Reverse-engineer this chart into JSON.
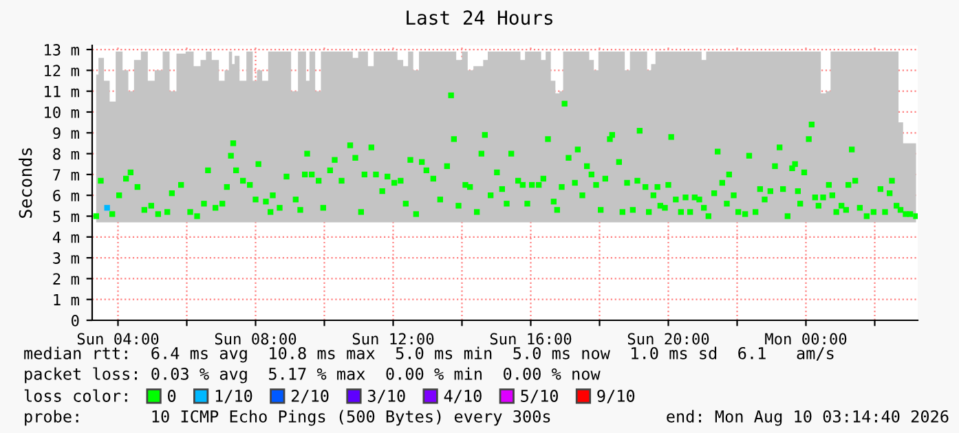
{
  "chart_data": {
    "type": "scatter",
    "title": "Last 24 Hours",
    "ylabel": "Seconds",
    "x": [
      "2026-08-09T03:22",
      "2026-08-09T03:30",
      "2026-08-09T03:41",
      "2026-08-09T03:50",
      "2026-08-09T04:02",
      "2026-08-09T04:14",
      "2026-08-09T04:22",
      "2026-08-09T04:34",
      "2026-08-09T04:46",
      "2026-08-09T04:58",
      "2026-08-09T05:10",
      "2026-08-09T05:26",
      "2026-08-09T05:34",
      "2026-08-09T05:50",
      "2026-08-09T06:06",
      "2026-08-09T06:18",
      "2026-08-09T06:30",
      "2026-08-09T06:37",
      "2026-08-09T06:50",
      "2026-08-09T07:02",
      "2026-08-09T07:10",
      "2026-08-09T07:17",
      "2026-08-09T07:21",
      "2026-08-09T07:26",
      "2026-08-09T07:38",
      "2026-08-09T07:50",
      "2026-08-09T08:00",
      "2026-08-09T08:05",
      "2026-08-09T08:18",
      "2026-08-09T08:26",
      "2026-08-09T08:30",
      "2026-08-09T08:42",
      "2026-08-09T08:54",
      "2026-08-09T09:10",
      "2026-08-09T09:18",
      "2026-08-09T09:26",
      "2026-08-09T09:30",
      "2026-08-09T09:38",
      "2026-08-09T09:50",
      "2026-08-09T09:58",
      "2026-08-09T10:10",
      "2026-08-09T10:18",
      "2026-08-09T10:30",
      "2026-08-09T10:45",
      "2026-08-09T10:54",
      "2026-08-09T11:04",
      "2026-08-09T11:10",
      "2026-08-09T11:22",
      "2026-08-09T11:30",
      "2026-08-09T11:41",
      "2026-08-09T11:50",
      "2026-08-09T12:02",
      "2026-08-09T12:13",
      "2026-08-09T12:22",
      "2026-08-09T12:30",
      "2026-08-09T12:40",
      "2026-08-09T12:50",
      "2026-08-09T12:58",
      "2026-08-09T13:10",
      "2026-08-09T13:22",
      "2026-08-09T13:34",
      "2026-08-09T13:41",
      "2026-08-09T13:46",
      "2026-08-09T13:54",
      "2026-08-09T14:06",
      "2026-08-09T14:14",
      "2026-08-09T14:26",
      "2026-08-09T14:34",
      "2026-08-09T14:40",
      "2026-08-09T14:50",
      "2026-08-09T15:01",
      "2026-08-09T15:10",
      "2026-08-09T15:18",
      "2026-08-09T15:26",
      "2026-08-09T15:38",
      "2026-08-09T15:46",
      "2026-08-09T15:54",
      "2026-08-09T16:02",
      "2026-08-09T16:14",
      "2026-08-09T16:22",
      "2026-08-09T16:30",
      "2026-08-09T16:40",
      "2026-08-09T16:46",
      "2026-08-09T16:54",
      "2026-08-09T16:59",
      "2026-08-09T17:06",
      "2026-08-09T17:17",
      "2026-08-09T17:22",
      "2026-08-09T17:30",
      "2026-08-09T17:38",
      "2026-08-09T17:46",
      "2026-08-09T17:54",
      "2026-08-09T18:02",
      "2026-08-09T18:10",
      "2026-08-09T18:18",
      "2026-08-09T18:22",
      "2026-08-09T18:34",
      "2026-08-09T18:40",
      "2026-08-09T18:48",
      "2026-08-09T18:58",
      "2026-08-09T19:06",
      "2026-08-09T19:10",
      "2026-08-09T19:20",
      "2026-08-09T19:26",
      "2026-08-09T19:34",
      "2026-08-09T19:41",
      "2026-08-09T19:46",
      "2026-08-09T19:54",
      "2026-08-09T20:00",
      "2026-08-09T20:05",
      "2026-08-09T20:13",
      "2026-08-09T20:22",
      "2026-08-09T20:30",
      "2026-08-09T20:38",
      "2026-08-09T20:46",
      "2026-08-09T20:54",
      "2026-08-09T21:02",
      "2026-08-09T21:10",
      "2026-08-09T21:20",
      "2026-08-09T21:26",
      "2026-08-09T21:34",
      "2026-08-09T21:42",
      "2026-08-09T21:46",
      "2026-08-09T21:54",
      "2026-08-09T22:02",
      "2026-08-09T22:14",
      "2026-08-09T22:21",
      "2026-08-09T22:32",
      "2026-08-09T22:40",
      "2026-08-09T22:48",
      "2026-08-09T22:58",
      "2026-08-09T23:06",
      "2026-08-09T23:14",
      "2026-08-09T23:20",
      "2026-08-09T23:28",
      "2026-08-09T23:36",
      "2026-08-09T23:41",
      "2026-08-09T23:46",
      "2026-08-09T23:50",
      "2026-08-09T23:57",
      "2026-08-10T00:05",
      "2026-08-10T00:10",
      "2026-08-10T00:16",
      "2026-08-10T00:22",
      "2026-08-10T00:30",
      "2026-08-10T00:40",
      "2026-08-10T00:46",
      "2026-08-10T00:53",
      "2026-08-10T01:02",
      "2026-08-10T01:10",
      "2026-08-10T01:14",
      "2026-08-10T01:20",
      "2026-08-10T01:26",
      "2026-08-10T01:34",
      "2026-08-10T01:46",
      "2026-08-10T01:58",
      "2026-08-10T02:10",
      "2026-08-10T02:18",
      "2026-08-10T02:26",
      "2026-08-10T02:30",
      "2026-08-10T02:38",
      "2026-08-10T02:45",
      "2026-08-10T02:54",
      "2026-08-10T03:02",
      "2026-08-10T03:12"
    ],
    "series": [
      {
        "name": "0",
        "color": "#00ff00",
        "values": [
          5.0,
          6.7,
          null,
          5.1,
          6.0,
          6.8,
          7.1,
          6.4,
          5.3,
          5.5,
          5.1,
          5.2,
          6.1,
          6.5,
          5.2,
          5.0,
          5.6,
          7.2,
          5.4,
          5.6,
          6.4,
          7.9,
          8.5,
          7.2,
          6.7,
          6.5,
          5.8,
          7.5,
          5.7,
          5.2,
          6.0,
          5.4,
          6.9,
          5.8,
          5.3,
          7.0,
          8.0,
          7.0,
          6.7,
          5.4,
          7.2,
          7.7,
          6.7,
          8.4,
          7.8,
          5.2,
          7.0,
          8.3,
          7.0,
          6.2,
          6.9,
          6.6,
          6.7,
          5.6,
          7.7,
          5.1,
          7.6,
          7.2,
          6.8,
          5.8,
          7.4,
          10.8,
          8.7,
          5.5,
          6.5,
          6.4,
          5.2,
          8.0,
          8.9,
          6.0,
          7.1,
          6.3,
          5.6,
          8.0,
          6.7,
          6.5,
          5.6,
          6.5,
          6.5,
          6.8,
          8.7,
          5.7,
          5.3,
          6.4,
          10.4,
          7.8,
          6.6,
          8.2,
          6.0,
          7.4,
          7.0,
          6.5,
          5.3,
          6.8,
          8.7,
          8.9,
          7.6,
          5.2,
          6.6,
          5.3,
          6.7,
          9.1,
          6.4,
          5.2,
          6.0,
          6.4,
          5.5,
          5.4,
          6.5,
          8.8,
          5.8,
          5.2,
          5.9,
          5.2,
          5.9,
          5.8,
          5.4,
          5.0,
          6.1,
          8.1,
          6.6,
          5.6,
          7.0,
          6.0,
          5.2,
          5.1,
          7.9,
          5.2,
          6.3,
          5.8,
          6.2,
          7.4,
          8.3,
          6.3,
          5.0,
          7.3,
          7.5,
          6.2,
          5.6,
          7.1,
          8.7,
          9.4,
          5.9,
          5.5,
          5.9,
          6.5,
          6.0,
          5.2,
          5.5,
          5.3,
          6.5,
          8.2,
          6.7,
          5.4,
          5.0,
          5.2,
          6.3,
          5.2,
          6.1,
          6.7,
          5.5,
          5.3,
          5.1,
          5.1,
          5.0
        ],
        "lower": [
          4.7,
          4.7,
          4.7,
          4.7,
          4.7,
          4.7,
          4.7,
          4.7,
          4.7,
          4.7,
          4.7,
          4.7,
          4.7,
          4.7,
          4.7,
          4.7,
          4.7,
          4.7,
          4.7,
          4.7,
          4.7,
          4.7,
          4.7,
          4.7,
          4.7,
          4.7,
          4.7,
          4.7,
          4.7,
          4.7,
          4.7,
          4.7,
          4.7,
          4.7,
          4.7,
          4.7,
          4.7,
          4.7,
          4.7,
          4.7,
          4.7,
          4.7,
          4.7,
          4.7,
          4.7,
          4.7,
          4.7,
          4.7,
          4.7,
          4.7,
          4.7,
          4.7,
          4.7,
          4.7,
          4.7,
          4.7,
          4.7,
          4.7,
          4.7,
          4.7,
          4.7,
          4.7,
          4.7,
          4.7,
          4.7,
          4.7,
          4.7,
          4.7,
          4.7,
          4.7,
          4.7,
          4.7,
          4.7,
          4.7,
          4.7,
          4.7,
          4.7,
          4.7,
          4.7,
          4.7,
          4.7,
          4.7,
          4.7,
          4.7,
          4.7,
          4.7,
          4.7,
          4.7,
          4.7,
          4.7,
          4.7,
          4.7,
          4.7,
          4.7,
          4.7,
          4.7,
          4.7,
          4.7,
          4.7,
          4.7,
          4.7,
          4.7,
          4.7,
          4.7,
          4.7,
          4.7,
          4.7,
          4.7,
          4.7,
          4.7,
          4.7,
          4.7,
          4.7,
          4.7,
          4.7,
          4.7,
          4.7,
          4.7,
          4.7,
          4.7,
          4.7,
          4.7,
          4.7,
          4.7,
          4.7,
          4.7,
          4.7,
          4.7,
          4.7,
          4.7,
          4.7,
          4.7,
          4.7,
          4.7,
          4.7,
          4.7,
          4.7,
          4.7,
          4.7,
          4.7,
          4.7,
          4.7,
          4.7,
          4.7,
          4.7,
          4.7,
          4.7,
          4.7,
          4.7,
          4.7,
          4.7,
          4.7,
          4.7,
          4.7,
          4.7,
          4.7,
          4.7,
          4.7,
          4.7,
          4.7,
          4.7,
          4.7,
          4.7,
          4.7,
          4.7
        ],
        "upper": [
          11.8,
          12.6,
          11.5,
          10.5,
          12.9,
          12.0,
          11.0,
          12.5,
          12.9,
          11.5,
          12.0,
          12.9,
          11.0,
          12.8,
          12.9,
          12.2,
          12.5,
          12.9,
          12.5,
          11.5,
          12.0,
          12.9,
          12.3,
          12.7,
          11.5,
          12.9,
          11.5,
          12.0,
          11.5,
          12.9,
          12.9,
          12.9,
          12.9,
          11.0,
          12.9,
          12.9,
          11.5,
          12.9,
          11.0,
          12.9,
          12.9,
          12.9,
          12.9,
          12.9,
          12.6,
          12.9,
          12.9,
          12.2,
          12.9,
          12.9,
          12.9,
          12.9,
          12.5,
          12.2,
          12.9,
          12.0,
          12.9,
          12.9,
          12.9,
          12.9,
          12.9,
          12.9,
          12.9,
          12.5,
          12.9,
          12.0,
          12.2,
          12.2,
          12.5,
          12.9,
          12.9,
          12.9,
          12.9,
          12.9,
          12.9,
          12.5,
          12.9,
          12.9,
          12.9,
          12.5,
          12.9,
          11.5,
          10.9,
          11.0,
          12.9,
          12.9,
          12.9,
          12.9,
          12.9,
          12.9,
          12.5,
          12.0,
          12.9,
          12.9,
          12.9,
          12.9,
          12.9,
          12.9,
          12.0,
          12.9,
          12.9,
          12.9,
          12.9,
          12.0,
          12.3,
          12.9,
          12.9,
          12.9,
          12.9,
          12.9,
          12.9,
          12.9,
          12.9,
          12.9,
          12.9,
          12.9,
          12.5,
          12.9,
          12.9,
          12.9,
          12.9,
          12.9,
          12.9,
          12.9,
          12.9,
          12.9,
          12.9,
          12.9,
          12.9,
          12.9,
          12.9,
          12.9,
          12.9,
          12.9,
          12.9,
          12.9,
          12.9,
          12.9,
          12.9,
          12.9,
          12.9,
          12.9,
          12.9,
          12.9,
          10.9,
          11.0,
          12.9,
          12.9,
          12.9,
          12.9,
          12.9,
          12.9,
          12.9,
          12.9,
          12.9,
          12.9,
          12.9,
          12.9,
          12.9,
          12.9,
          12.9,
          9.5,
          8.5,
          8.5,
          8.5
        ]
      },
      {
        "name": "1/10",
        "color": "#00b8ff",
        "x": [
          "2026-08-09T03:41"
        ],
        "values": [
          5.4
        ]
      },
      {
        "name": "2/10",
        "color": "#0059ff",
        "values": [
          null,
          null,
          null,
          null,
          null,
          null,
          null,
          null,
          null,
          null,
          null,
          null,
          null,
          null,
          null,
          null,
          null,
          null,
          null,
          null,
          null,
          null,
          null,
          null,
          null,
          null,
          null,
          null,
          null,
          null,
          null,
          null,
          null,
          null,
          null,
          null,
          null,
          null,
          null,
          null,
          null,
          null,
          null,
          null,
          null,
          null,
          null,
          null,
          null,
          null,
          null,
          null,
          null,
          null,
          null,
          null,
          null,
          null,
          null,
          null,
          null,
          null,
          null,
          null,
          null,
          null,
          null,
          null,
          null,
          null,
          null,
          null,
          null,
          null,
          null,
          null,
          null,
          null,
          null,
          null,
          null,
          null,
          null,
          null,
          null,
          null,
          null,
          null,
          null,
          null,
          null,
          null,
          null,
          null,
          null,
          null,
          null,
          null,
          null,
          null,
          null,
          null,
          null,
          null,
          null,
          null,
          null,
          null,
          null,
          null,
          null,
          null,
          null,
          null,
          null,
          null,
          null,
          null,
          null,
          null,
          null,
          null,
          null,
          null,
          null,
          null,
          null,
          null,
          null,
          null,
          null,
          null,
          null,
          null,
          null,
          null,
          null,
          null,
          null,
          null,
          null,
          null,
          null,
          null,
          null,
          null,
          null,
          null,
          null,
          null,
          null,
          null,
          null,
          null,
          null,
          null,
          null,
          null,
          null,
          null,
          null,
          null,
          null,
          null,
          null
        ]
      },
      {
        "name": "3/10",
        "color": "#5e00ff",
        "values": [
          null,
          null,
          null,
          null,
          null,
          null,
          null,
          null,
          null,
          null,
          null,
          null,
          null,
          null,
          null,
          null,
          null,
          null,
          null,
          null,
          null,
          null,
          null,
          null,
          null,
          null,
          null,
          null,
          null,
          null,
          null,
          null,
          null,
          null,
          null,
          null,
          null,
          null,
          null,
          null,
          null,
          null,
          null,
          null,
          null,
          null,
          null,
          null,
          null,
          null,
          null,
          null,
          null,
          null,
          null,
          null,
          null,
          null,
          null,
          null,
          null,
          null,
          null,
          null,
          null,
          null,
          null,
          null,
          null,
          null,
          null,
          null,
          null,
          null,
          null,
          null,
          null,
          null,
          null,
          null,
          null,
          null,
          null,
          null,
          null,
          null,
          null,
          null,
          null,
          null,
          null,
          null,
          null,
          null,
          null,
          null,
          null,
          null,
          null,
          null,
          null,
          null,
          null,
          null,
          null,
          null,
          null,
          null,
          null,
          null,
          null,
          null,
          null,
          null,
          null,
          null,
          null,
          null,
          null,
          null,
          null,
          null,
          null,
          null,
          null,
          null,
          null,
          null,
          null,
          null,
          null,
          null,
          null,
          null,
          null,
          null,
          null,
          null,
          null,
          null,
          null,
          null,
          null,
          null,
          null,
          null,
          null,
          null,
          null,
          null,
          null,
          null,
          null,
          null,
          null,
          null,
          null,
          null,
          null,
          null,
          null,
          null,
          null,
          null,
          null
        ]
      },
      {
        "name": "4/10",
        "color": "#7e00ff",
        "values": [
          null,
          null,
          null,
          null,
          null,
          null,
          null,
          null,
          null,
          null,
          null,
          null,
          null,
          null,
          null,
          null,
          null,
          null,
          null,
          null,
          null,
          null,
          null,
          null,
          null,
          null,
          null,
          null,
          null,
          null,
          null,
          null,
          null,
          null,
          null,
          null,
          null,
          null,
          null,
          null,
          null,
          null,
          null,
          null,
          null,
          null,
          null,
          null,
          null,
          null,
          null,
          null,
          null,
          null,
          null,
          null,
          null,
          null,
          null,
          null,
          null,
          null,
          null,
          null,
          null,
          null,
          null,
          null,
          null,
          null,
          null,
          null,
          null,
          null,
          null,
          null,
          null,
          null,
          null,
          null,
          null,
          null,
          null,
          null,
          null,
          null,
          null,
          null,
          null,
          null,
          null,
          null,
          null,
          null,
          null,
          null,
          null,
          null,
          null,
          null,
          null,
          null,
          null,
          null,
          null,
          null,
          null,
          null,
          null,
          null,
          null,
          null,
          null,
          null,
          null,
          null,
          null,
          null,
          null,
          null,
          null,
          null,
          null,
          null,
          null,
          null,
          null,
          null,
          null,
          null,
          null,
          null,
          null,
          null,
          null,
          null,
          null,
          null,
          null,
          null,
          null,
          null,
          null,
          null,
          null,
          null,
          null,
          null,
          null,
          null,
          null,
          null,
          null,
          null,
          null,
          null,
          null,
          null,
          null,
          null,
          null,
          null,
          null,
          null,
          null
        ]
      },
      {
        "name": "5/10",
        "color": "#dd00ff",
        "values": [
          null,
          null,
          null,
          null,
          null,
          null,
          null,
          null,
          null,
          null,
          null,
          null,
          null,
          null,
          null,
          null,
          null,
          null,
          null,
          null,
          null,
          null,
          null,
          null,
          null,
          null,
          null,
          null,
          null,
          null,
          null,
          null,
          null,
          null,
          null,
          null,
          null,
          null,
          null,
          null,
          null,
          null,
          null,
          null,
          null,
          null,
          null,
          null,
          null,
          null,
          null,
          null,
          null,
          null,
          null,
          null,
          null,
          null,
          null,
          null,
          null,
          null,
          null,
          null,
          null,
          null,
          null,
          null,
          null,
          null,
          null,
          null,
          null,
          null,
          null,
          null,
          null,
          null,
          null,
          null,
          null,
          null,
          null,
          null,
          null,
          null,
          null,
          null,
          null,
          null,
          null,
          null,
          null,
          null,
          null,
          null,
          null,
          null,
          null,
          null,
          null,
          null,
          null,
          null,
          null,
          null,
          null,
          null,
          null,
          null,
          null,
          null,
          null,
          null,
          null,
          null,
          null,
          null,
          null,
          null,
          null,
          null,
          null,
          null,
          null,
          null,
          null,
          null,
          null,
          null,
          null,
          null,
          null,
          null,
          null,
          null,
          null,
          null,
          null,
          null,
          null,
          null,
          null,
          null,
          null,
          null,
          null,
          null,
          null,
          null,
          null,
          null,
          null,
          null,
          null,
          null,
          null,
          null,
          null,
          null,
          null,
          null,
          null,
          null,
          null
        ]
      },
      {
        "name": "9/10",
        "color": "#ff0000",
        "values": [
          null,
          null,
          null,
          null,
          null,
          null,
          null,
          null,
          null,
          null,
          null,
          null,
          null,
          null,
          null,
          null,
          null,
          null,
          null,
          null,
          null,
          null,
          null,
          null,
          null,
          null,
          null,
          null,
          null,
          null,
          null,
          null,
          null,
          null,
          null,
          null,
          null,
          null,
          null,
          null,
          null,
          null,
          null,
          null,
          null,
          null,
          null,
          null,
          null,
          null,
          null,
          null,
          null,
          null,
          null,
          null,
          null,
          null,
          null,
          null,
          null,
          null,
          null,
          null,
          null,
          null,
          null,
          null,
          null,
          null,
          null,
          null,
          null,
          null,
          null,
          null,
          null,
          null,
          null,
          null,
          null,
          null,
          null,
          null,
          null,
          null,
          null,
          null,
          null,
          null,
          null,
          null,
          null,
          null,
          null,
          null,
          null,
          null,
          null,
          null,
          null,
          null,
          null,
          null,
          null,
          null,
          null,
          null,
          null,
          null,
          null,
          null,
          null,
          null,
          null,
          null,
          null,
          null,
          null,
          null,
          null,
          null,
          null,
          null,
          null,
          null,
          null,
          null,
          null,
          null,
          null,
          null,
          null,
          null,
          null,
          null,
          null,
          null,
          null,
          null,
          null,
          null,
          null,
          null,
          null,
          null,
          null,
          null,
          null,
          null,
          null,
          null,
          null,
          null,
          null,
          null,
          null,
          null,
          null,
          null,
          null,
          null,
          null,
          null,
          null
        ]
      }
    ],
    "legend": "bottom",
    "legend_title": "loss color:",
    "marker": "square",
    "grid": true,
    "xlim": [
      "2026-08-09T03:15",
      "2026-08-10T03:15"
    ],
    "xticks": [
      {
        "value": "2026-08-09T04:00",
        "label": "Sun 04:00"
      },
      {
        "value": "2026-08-09T06:00",
        "label": null
      },
      {
        "value": "2026-08-09T08:00",
        "label": "Sun 08:00"
      },
      {
        "value": "2026-08-09T10:00",
        "label": null
      },
      {
        "value": "2026-08-09T12:00",
        "label": "Sun 12:00"
      },
      {
        "value": "2026-08-09T14:00",
        "label": null
      },
      {
        "value": "2026-08-09T16:00",
        "label": "Sun 16:00"
      },
      {
        "value": "2026-08-09T18:00",
        "label": null
      },
      {
        "value": "2026-08-09T20:00",
        "label": "Sun 20:00"
      },
      {
        "value": "2026-08-09T22:00",
        "label": null
      },
      {
        "value": "2026-08-10T00:00",
        "label": "Mon 00:00"
      },
      {
        "value": "2026-08-10T02:00",
        "label": null
      }
    ],
    "ylim": [
      0,
      13.2
    ],
    "yticks": [
      0,
      {
        "value": 1,
        "label": "1 m"
      },
      {
        "value": 2,
        "label": "2 m"
      },
      {
        "value": 3,
        "label": "3 m"
      },
      {
        "value": 4,
        "label": "4 m"
      },
      {
        "value": 5,
        "label": "5 m"
      },
      {
        "value": 6,
        "label": "6 m"
      },
      {
        "value": 7,
        "label": "7 m"
      },
      {
        "value": 8,
        "label": "8 m"
      },
      {
        "value": 9,
        "label": "9 m"
      },
      {
        "value": 10,
        "label": "10 m"
      },
      {
        "value": 11,
        "label": "11 m"
      },
      {
        "value": 12,
        "label": "12 m"
      },
      {
        "value": 13,
        "label": "13 m"
      }
    ],
    "annotations": [
      "median rtt:  6.4 ms avg  10.8 ms max  5.0 ms min  5.0 ms now  1.0 ms sd  6.1   am/s",
      "packet loss: 0.03 % avg  5.17 % max  0.00 % min  0.00 % now",
      "probe:       10 ICMP Echo Pings (500 Bytes) every 300s",
      "end: Mon Aug 10 03:14:40 2026"
    ]
  }
}
